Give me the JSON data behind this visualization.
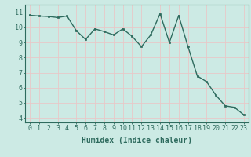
{
  "x": [
    0,
    1,
    2,
    3,
    4,
    5,
    6,
    7,
    8,
    9,
    10,
    11,
    12,
    13,
    14,
    15,
    16,
    17,
    18,
    19,
    20,
    21,
    22,
    23
  ],
  "y": [
    10.8,
    10.75,
    10.72,
    10.65,
    10.75,
    9.78,
    9.2,
    9.9,
    9.72,
    9.5,
    9.9,
    9.4,
    8.72,
    9.5,
    10.9,
    9.0,
    10.78,
    8.72,
    6.78,
    6.4,
    5.5,
    4.8,
    4.7,
    4.2
  ],
  "line_color": "#2e6b5e",
  "marker": "s",
  "marker_size": 1.8,
  "linewidth": 1.0,
  "background_color": "#cceae4",
  "grid_color": "#e8c8c8",
  "xlabel": "Humidex (Indice chaleur)",
  "xlabel_fontsize": 7,
  "ylabel_ticks": [
    4,
    5,
    6,
    7,
    8,
    9,
    10,
    11
  ],
  "xlim": [
    -0.5,
    23.5
  ],
  "ylim": [
    3.7,
    11.5
  ],
  "tick_fontsize": 6,
  "xtick_labels": [
    "0",
    "1",
    "2",
    "3",
    "4",
    "5",
    "6",
    "7",
    "8",
    "9",
    "10",
    "11",
    "12",
    "13",
    "14",
    "15",
    "16",
    "17",
    "18",
    "19",
    "20",
    "21",
    "22",
    "23"
  ]
}
